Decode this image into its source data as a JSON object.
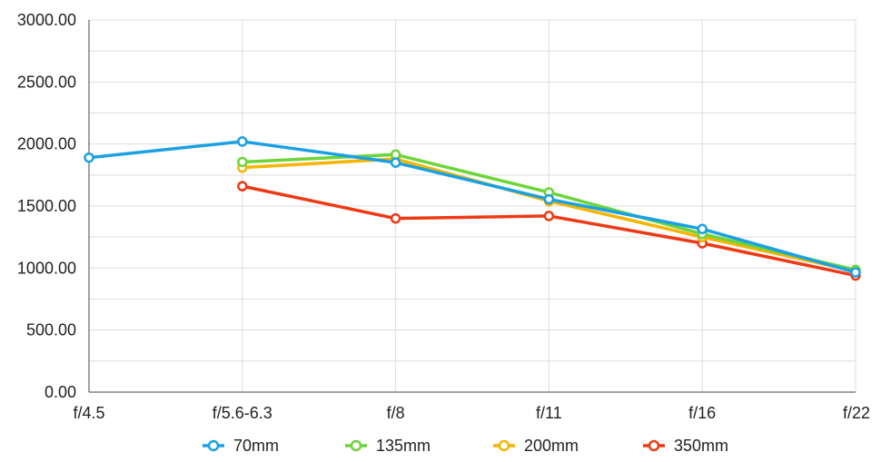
{
  "chart_data": {
    "type": "line",
    "title": "",
    "xlabel": "",
    "ylabel": "",
    "categories": [
      "f/4.5",
      "f/5.6-6.3",
      "f/8",
      "f/11",
      "f/16",
      "f/22"
    ],
    "ylim": [
      0,
      3000
    ],
    "yticks": [
      0,
      500,
      1000,
      1500,
      2000,
      2500,
      3000
    ],
    "ytick_labels": [
      "0.00",
      "500.00",
      "1000.00",
      "1500.00",
      "2000.00",
      "2500.00",
      "3000.00"
    ],
    "grid": true,
    "legend_position": "bottom",
    "series": [
      {
        "name": "70mm",
        "color": "#1ba1e2",
        "values": [
          1890,
          2020,
          1850,
          1555,
          1315,
          965
        ]
      },
      {
        "name": "135mm",
        "color": "#6dd43a",
        "values": [
          null,
          1855,
          1915,
          1610,
          1275,
          985
        ]
      },
      {
        "name": "200mm",
        "color": "#f5b400",
        "values": [
          null,
          1810,
          1880,
          1540,
          1250,
          975
        ]
      },
      {
        "name": "350mm",
        "color": "#ee3a14",
        "values": [
          null,
          1660,
          1400,
          1420,
          1200,
          940
        ]
      }
    ]
  }
}
